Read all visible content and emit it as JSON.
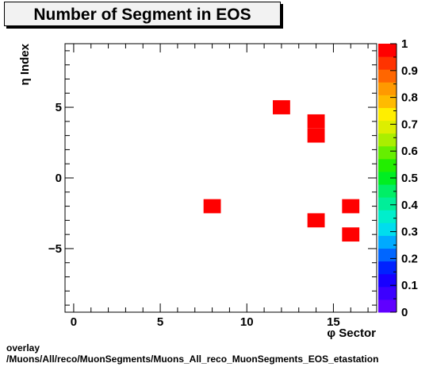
{
  "chart_data": {
    "type": "heatmap",
    "title": "Number of Segment in EOS",
    "xlabel": "φ Sector",
    "ylabel": "η Index",
    "xlim": [
      -0.5,
      17.5
    ],
    "ylim": [
      -9.5,
      9.5
    ],
    "x_ticks": [
      0,
      5,
      10,
      15
    ],
    "y_ticks": [
      -5,
      0,
      5
    ],
    "zlim": [
      0,
      1
    ],
    "z_ticks": [
      "0",
      "0.1",
      "0.2",
      "0.3",
      "0.4",
      "0.5",
      "0.6",
      "0.7",
      "0.8",
      "0.9",
      "1"
    ],
    "cells": [
      {
        "x": 12,
        "y": 5,
        "value": 1
      },
      {
        "x": 14,
        "y": 4,
        "value": 1
      },
      {
        "x": 14,
        "y": 3,
        "value": 1
      },
      {
        "x": 8,
        "y": -2,
        "value": 1
      },
      {
        "x": 16,
        "y": -2,
        "value": 1
      },
      {
        "x": 14,
        "y": -3,
        "value": 1
      },
      {
        "x": 16,
        "y": -4,
        "value": 1
      }
    ],
    "palette": [
      "#6000ff",
      "#3c00ff",
      "#1800ff",
      "#0022ff",
      "#0066ff",
      "#00aaff",
      "#00ddee",
      "#00eecc",
      "#00ee99",
      "#00ee66",
      "#00ee22",
      "#22ee00",
      "#66ee00",
      "#aaee00",
      "#ddee00",
      "#ffee00",
      "#ffbb00",
      "#ff9900",
      "#ff6600",
      "#ff3300",
      "#ff0000"
    ]
  },
  "footer": {
    "line1": "overlay",
    "line2": "/Muons/All/reco/MuonSegments/Muons_All_reco_MuonSegments_EOS_etastation"
  }
}
